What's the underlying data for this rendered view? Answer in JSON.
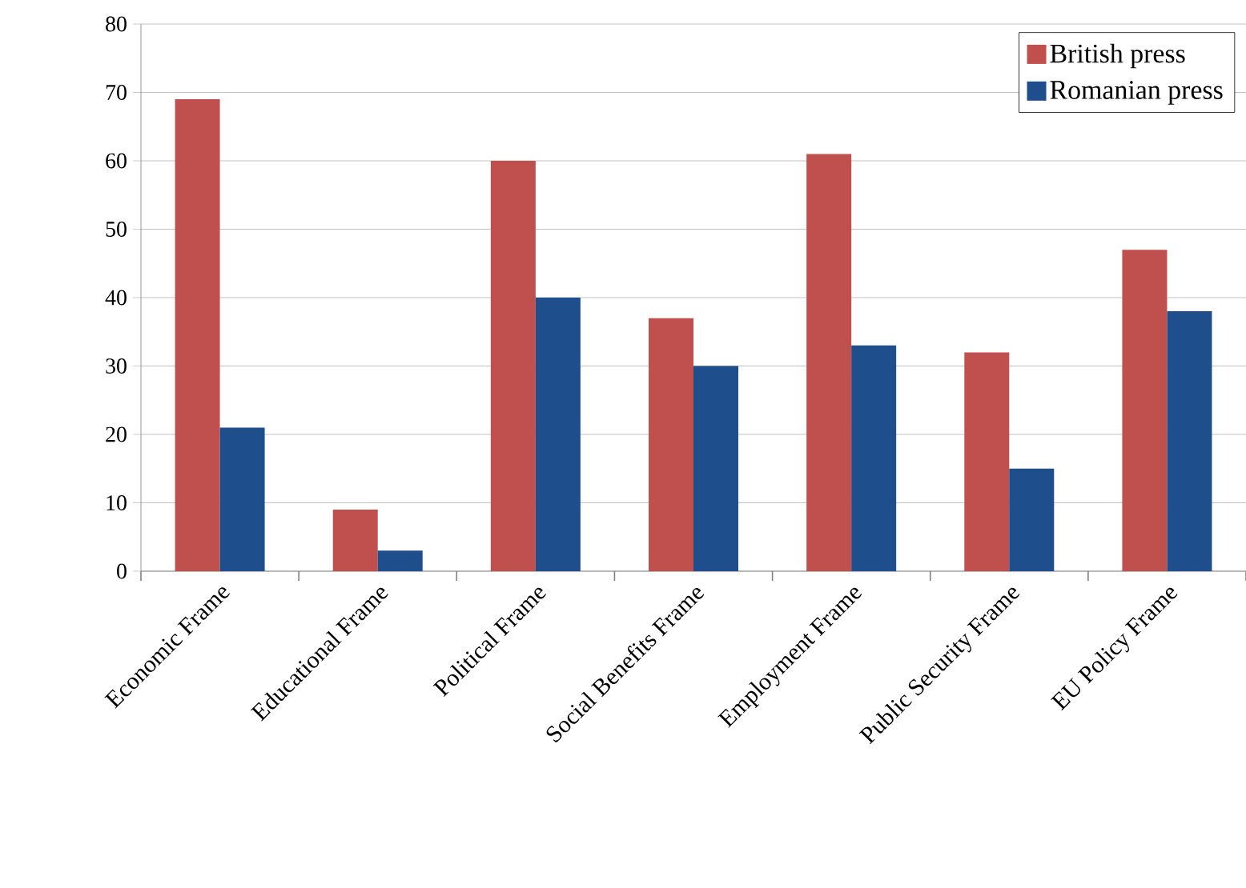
{
  "chart_data": {
    "type": "bar",
    "categories": [
      "Economic Frame",
      "Educational Frame",
      "Political Frame",
      "Social Benefits Frame",
      "Employment Frame",
      "Public Security Frame",
      "EU Policy Frame"
    ],
    "series": [
      {
        "name": "British press",
        "color": "#c0504d",
        "values": [
          69,
          9,
          60,
          37,
          61,
          32,
          47
        ]
      },
      {
        "name": "Romanian press",
        "color": "#1f4e8c",
        "values": [
          21,
          3,
          40,
          30,
          33,
          15,
          38
        ]
      }
    ],
    "ylim": [
      0,
      80
    ],
    "yticks": [
      0,
      10,
      20,
      30,
      40,
      50,
      60,
      70,
      80
    ],
    "grid": "y",
    "legend": "top right"
  }
}
